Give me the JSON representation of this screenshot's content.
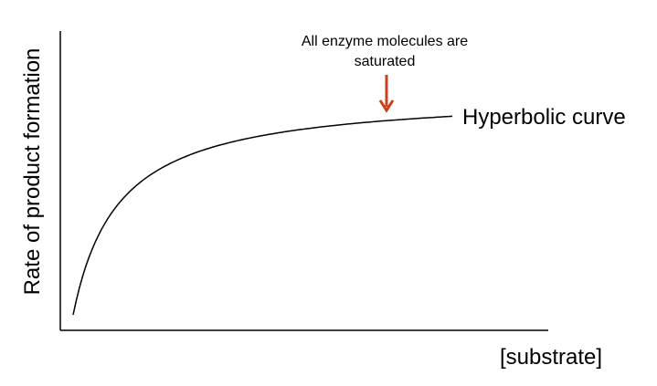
{
  "chart_data": {
    "type": "line",
    "xlabel": "[substrate]",
    "ylabel": "Rate of product formation",
    "grid": false,
    "x_ticks_shown": false,
    "y_ticks_shown": false,
    "curve_label": "Hyperbolic curve",
    "annotation": {
      "lines": [
        "All enzyme molecules are",
        "saturated"
      ],
      "arrow_color": "#c8411b",
      "pointing_at": "plateau of curve"
    },
    "series": [
      {
        "shape": "hyperbolic (saturation)",
        "color": "#000000"
      }
    ]
  }
}
